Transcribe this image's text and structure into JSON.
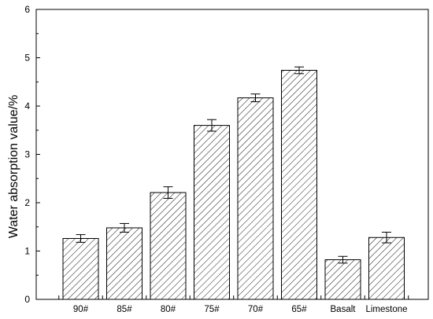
{
  "chart_data": {
    "type": "bar",
    "categories": [
      "90#",
      "85#",
      "80#",
      "75#",
      "70#",
      "65#",
      "Basalt",
      "Limestone"
    ],
    "values": [
      1.26,
      1.48,
      2.21,
      3.6,
      4.17,
      4.74,
      0.82,
      1.28
    ],
    "errors": [
      0.08,
      0.09,
      0.12,
      0.12,
      0.08,
      0.07,
      0.07,
      0.11
    ],
    "xlabel": "",
    "ylabel": "Water absorption value/%",
    "ylim": [
      0,
      6
    ],
    "yticks": [
      "0",
      "1",
      "2",
      "3",
      "4",
      "5",
      "6"
    ],
    "bar_fill": "hatched",
    "grid": false,
    "colors": {
      "bar_stroke": "#000000",
      "hatch": "#000000",
      "axis": "#000000"
    }
  }
}
